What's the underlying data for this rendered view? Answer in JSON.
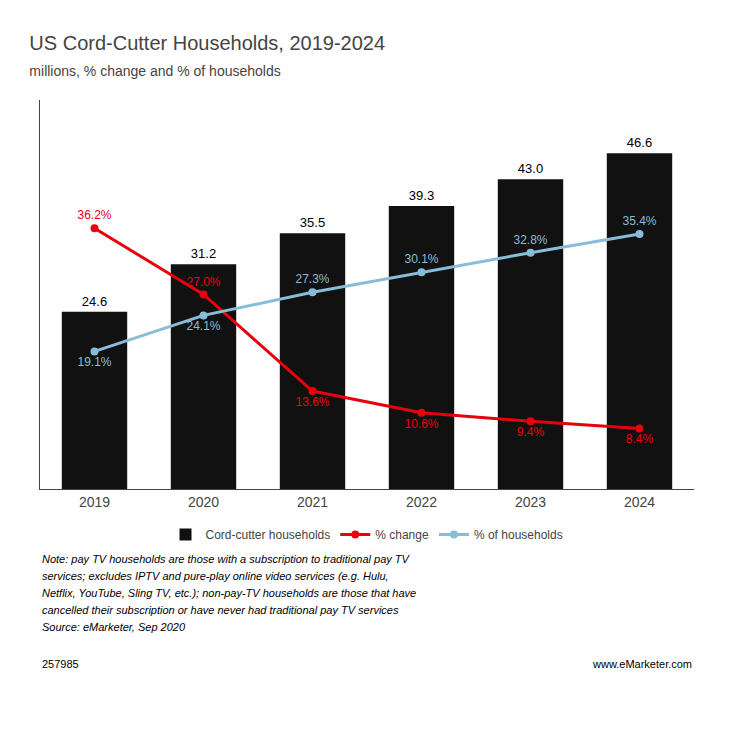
{
  "chart_data": {
    "type": "bar",
    "title": "US Cord-Cutter Households, 2019-2024",
    "subtitle": "millions, % change and % of households",
    "categories": [
      "2019",
      "2020",
      "2021",
      "2022",
      "2023",
      "2024"
    ],
    "series": [
      {
        "name": "Cord-cutter households",
        "type": "bar",
        "color": "#111111",
        "values": [
          24.6,
          31.2,
          35.5,
          39.3,
          43.0,
          46.6
        ],
        "value_labels": [
          "24.6",
          "31.2",
          "35.5",
          "39.3",
          "43.0",
          "46.6"
        ]
      },
      {
        "name": "% change",
        "type": "line",
        "marker": "circle",
        "color": "#e8000d",
        "values": [
          36.2,
          27.0,
          13.6,
          10.6,
          9.4,
          8.4
        ],
        "value_labels": [
          "36.2%",
          "27.0%",
          "13.6%",
          "10.6%",
          "9.4%",
          "8.4%"
        ]
      },
      {
        "name": "% of households",
        "type": "line",
        "marker": "circle",
        "color": "#87bdd8",
        "values": [
          19.1,
          24.1,
          27.3,
          30.1,
          32.8,
          35.4
        ],
        "value_labels": [
          "19.1%",
          "24.1%",
          "27.3%",
          "30.1%",
          "32.8%",
          "35.4%"
        ]
      }
    ],
    "ylim": [
      0,
      54
    ],
    "grid": false,
    "legend": "bottom",
    "data_labels": true,
    "tick_labels": "x",
    "annotations": [
      "Note: pay TV households are those with a subscription to traditional pay TV",
      "services; excludes IPTV and pure-play online video services (e.g. Hulu,",
      "Netflix, YouTube, Sling TV, etc.); non-pay-TV households are those that have",
      "cancelled their subscription or have never had traditional pay TV services",
      "Source: eMarketer, Sep 2020"
    ],
    "footer": [
      "257985",
      "www.eMarketer.com"
    ]
  }
}
